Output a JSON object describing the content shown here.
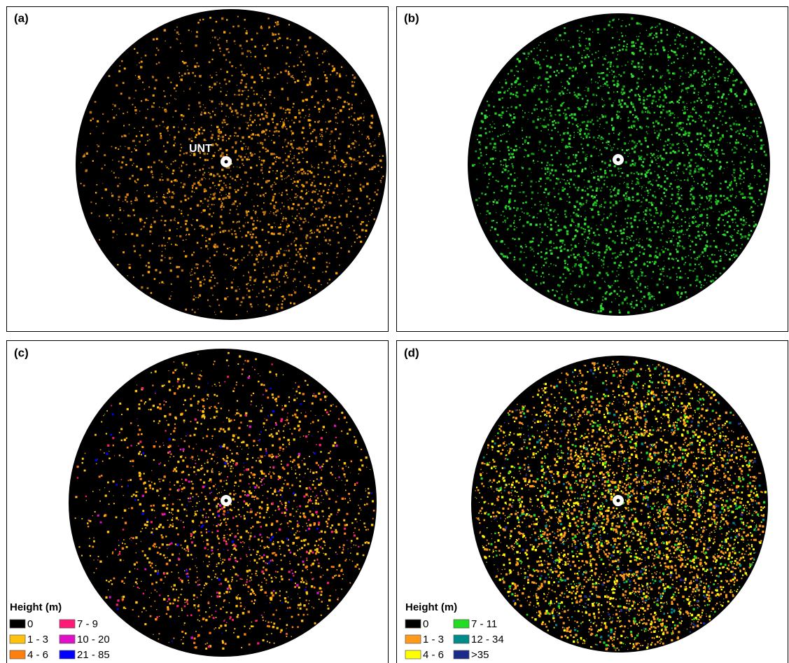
{
  "panels": [
    {
      "label": "(a)",
      "annotation": "UNT"
    },
    {
      "label": "(b)"
    },
    {
      "label": "(c)",
      "legend": {
        "title": "Height (m)",
        "items": [
          {
            "label": "0",
            "color": "#000000"
          },
          {
            "label": "1 - 3",
            "color": "#ffc20e"
          },
          {
            "label": "4 - 6",
            "color": "#ff7f0e"
          },
          {
            "label": "7 - 9",
            "color": "#ff1a75"
          },
          {
            "label": "10 - 20",
            "color": "#e010c8"
          },
          {
            "label": "21 - 85",
            "color": "#0000ff"
          }
        ]
      }
    },
    {
      "label": "(d)",
      "legend": {
        "title": "Height (m)",
        "items": [
          {
            "label": "0",
            "color": "#000000"
          },
          {
            "label": "1 - 3",
            "color": "#ff9a1a"
          },
          {
            "label": "4 - 6",
            "color": "#ffff00"
          },
          {
            "label": "7 - 11",
            "color": "#22dd22"
          },
          {
            "label": "12 - 34",
            "color": "#008b8b"
          },
          {
            "label": ">35",
            "color": "#1a2b8a"
          }
        ]
      }
    }
  ]
}
